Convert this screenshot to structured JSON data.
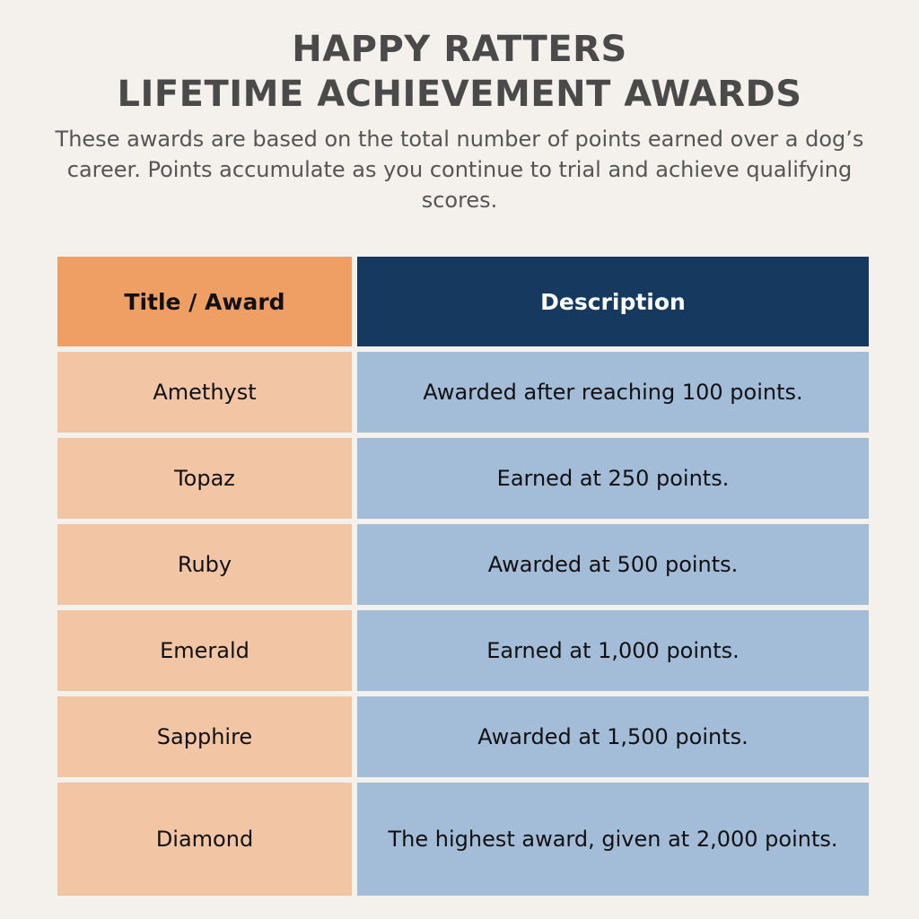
{
  "header": {
    "title_line1": "HAPPY RATTERS",
    "title_line2": "LIFETIME ACHIEVEMENT AWARDS",
    "subtitle": "These awards are based on the total number of points earned over a dog’s career. Points accumulate as you continue to trial and achieve qualifying scores."
  },
  "table": {
    "headers": {
      "title": "Title / Award",
      "description": "Description"
    },
    "rows": [
      {
        "title": "Amethyst",
        "description": "Awarded after reaching 100 points."
      },
      {
        "title": "Topaz",
        "description": "Earned at 250 points."
      },
      {
        "title": "Ruby",
        "description": "Awarded at 500 points."
      },
      {
        "title": "Emerald",
        "description": "Earned at 1,000 points."
      },
      {
        "title": "Sapphire",
        "description": "Awarded at 1,500 points."
      },
      {
        "title": "Diamond",
        "description": "The highest award, given at 2,000 points."
      }
    ]
  },
  "colors": {
    "background": "#f4f1ec",
    "title_text": "#4a4a4a",
    "header_title_bg": "#ef9f63",
    "header_desc_bg": "#163a5f",
    "cell_title_bg": "#f2c6a5",
    "cell_desc_bg": "#a3bcd8"
  }
}
